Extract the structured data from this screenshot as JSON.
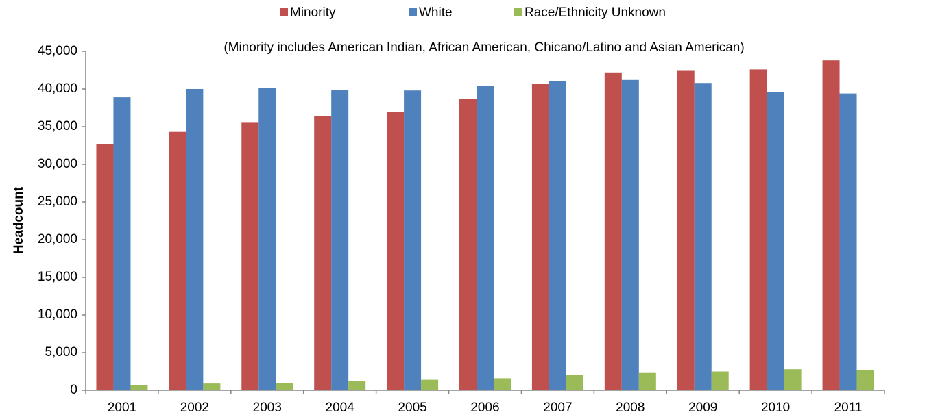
{
  "chart_data": {
    "type": "bar",
    "subtitle": "(Minority includes American Indian, African American, Chicano/Latino and Asian American)",
    "y_label": "Headcount",
    "categories": [
      "2001",
      "2002",
      "2003",
      "2004",
      "2005",
      "2006",
      "2007",
      "2008",
      "2009",
      "2010",
      "2011"
    ],
    "series": [
      {
        "name": "Minority",
        "color": "#c0504d",
        "values": [
          32700,
          34300,
          35600,
          36400,
          37000,
          38700,
          40700,
          42200,
          42500,
          42600,
          43800
        ]
      },
      {
        "name": "White",
        "color": "#4f81bd",
        "values": [
          38900,
          40000,
          40100,
          39900,
          39800,
          40400,
          41000,
          41200,
          40800,
          39600,
          39400
        ]
      },
      {
        "name": "Race/Ethnicity Unknown",
        "color": "#9bbb59",
        "values": [
          700,
          900,
          1000,
          1200,
          1400,
          1600,
          2000,
          2300,
          2500,
          2800,
          2700
        ]
      }
    ],
    "ylim": [
      0,
      45000
    ],
    "yticks": [
      0,
      {
        "value": 5000,
        "label": "5,000"
      },
      {
        "value": 10000,
        "label": "10,000"
      },
      {
        "value": 15000,
        "label": "15,000"
      },
      {
        "value": 20000,
        "label": "20,000"
      },
      {
        "value": 25000,
        "label": "25,000"
      },
      {
        "value": 30000,
        "label": "30,000"
      },
      {
        "value": 35000,
        "label": "35,000"
      },
      {
        "value": 40000,
        "label": "40,000"
      },
      {
        "value": 45000,
        "label": "45,000"
      }
    ],
    "legend": "top",
    "grid": false
  }
}
